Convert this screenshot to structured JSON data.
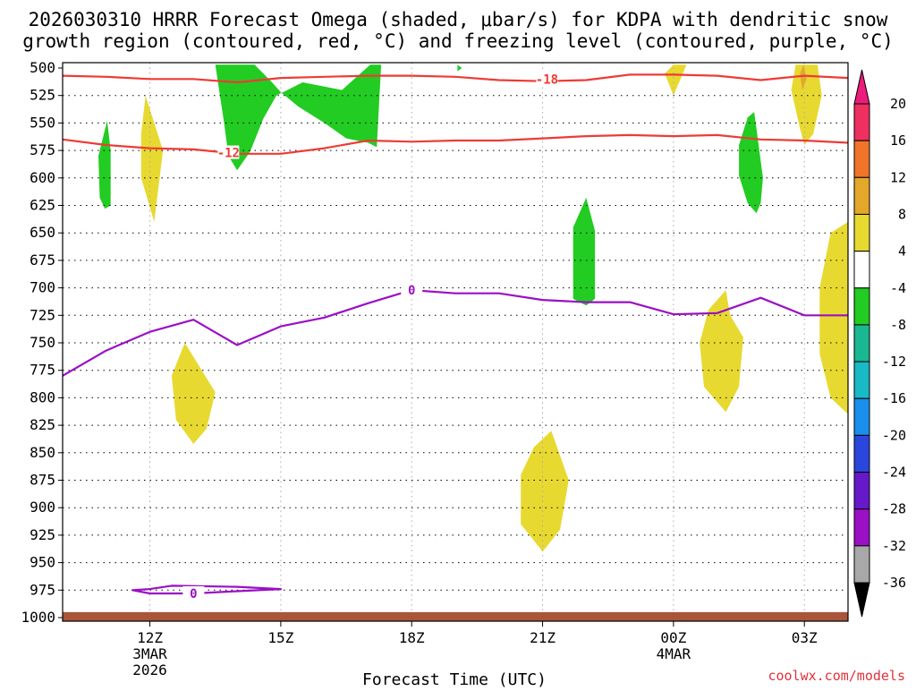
{
  "chart_data": {
    "type": "time-height contour",
    "title_line1": "2026030310 HRRR Forecast Omega (shaded, μbar/s) for KDPA with dendritic snow",
    "title_line2": "growth region (contoured, red, °C) and freezing level (contoured, purple, °C)",
    "xlabel": "Forecast Time (UTC)",
    "credit": "coolwx.com/models",
    "x_range_hours": [
      10,
      28
    ],
    "y_range_hPa": [
      500,
      1000
    ],
    "y_ticks": [
      500,
      525,
      550,
      575,
      600,
      625,
      650,
      675,
      700,
      725,
      750,
      775,
      800,
      825,
      850,
      875,
      900,
      925,
      950,
      975,
      1000
    ],
    "x_ticks": [
      {
        "hour": 12,
        "label": "12Z",
        "sub1": "3MAR",
        "sub2": "2026"
      },
      {
        "hour": 15,
        "label": "15Z",
        "sub1": "",
        "sub2": ""
      },
      {
        "hour": 18,
        "label": "18Z",
        "sub1": "",
        "sub2": ""
      },
      {
        "hour": 21,
        "label": "21Z",
        "sub1": "",
        "sub2": ""
      },
      {
        "hour": 24,
        "label": "00Z",
        "sub1": "4MAR",
        "sub2": ""
      },
      {
        "hour": 27,
        "label": "03Z",
        "sub1": "",
        "sub2": ""
      }
    ],
    "colorbar": {
      "levels": [
        20,
        16,
        12,
        8,
        4,
        -4,
        -8,
        -12,
        -16,
        -20,
        -24,
        -28,
        -32,
        -36
      ],
      "colors": [
        "#ee2f60",
        "#f0752a",
        "#e3a82a",
        "#e8d931",
        "#ffffff",
        "#22cc22",
        "#1ab892",
        "#19b9c6",
        "#1a8fec",
        "#2b46dc",
        "#6619c8",
        "#9a10c4",
        "#a8a8a8"
      ],
      "top_color": "#ec1c7c",
      "bottom_color": "#000000"
    },
    "series": [
      {
        "name": "dgz_-12C",
        "color": "#ee3b35",
        "label": "-12",
        "label_at": [
          13.8,
          577
        ],
        "points": [
          [
            10,
            565
          ],
          [
            11,
            570
          ],
          [
            12,
            573
          ],
          [
            13,
            574
          ],
          [
            14,
            578
          ],
          [
            15,
            578
          ],
          [
            16,
            573
          ],
          [
            17,
            566
          ],
          [
            18,
            567
          ],
          [
            19,
            566
          ],
          [
            20,
            566
          ],
          [
            21,
            564
          ],
          [
            22,
            562
          ],
          [
            23,
            561
          ],
          [
            24,
            562
          ],
          [
            25,
            561
          ],
          [
            26,
            565
          ],
          [
            27,
            566
          ],
          [
            28,
            568
          ]
        ]
      },
      {
        "name": "dgz_-18C",
        "color": "#ee3b35",
        "label": "-18",
        "label_at": [
          21.1,
          510
        ],
        "points": [
          [
            10,
            507
          ],
          [
            11,
            508
          ],
          [
            12,
            510
          ],
          [
            13,
            510
          ],
          [
            14,
            513
          ],
          [
            15,
            509
          ],
          [
            16,
            508
          ],
          [
            17,
            507
          ],
          [
            18,
            507
          ],
          [
            19,
            508
          ],
          [
            20,
            511
          ],
          [
            21,
            512
          ],
          [
            22,
            511
          ],
          [
            23,
            506
          ],
          [
            24,
            506
          ],
          [
            25,
            507
          ],
          [
            26,
            511
          ],
          [
            27,
            507
          ],
          [
            28,
            509
          ]
        ]
      },
      {
        "name": "freezing_level_0C",
        "color": "#9a10c4",
        "label": "0",
        "label_at": [
          18.0,
          702
        ],
        "points": [
          [
            10,
            780
          ],
          [
            11,
            757
          ],
          [
            12,
            740
          ],
          [
            13,
            729
          ],
          [
            14,
            752
          ],
          [
            15,
            735
          ],
          [
            16,
            727
          ],
          [
            17,
            714
          ],
          [
            18,
            702
          ],
          [
            19,
            705
          ],
          [
            20,
            705
          ],
          [
            21,
            711
          ],
          [
            22,
            713
          ],
          [
            23,
            713
          ],
          [
            24,
            724
          ],
          [
            25,
            723
          ],
          [
            26,
            709
          ],
          [
            27,
            725
          ],
          [
            28,
            725
          ]
        ]
      },
      {
        "name": "freezing_level_0C_surface",
        "color": "#9a10c4",
        "label": "0",
        "label_at": [
          13.0,
          978
        ],
        "closed": true,
        "points": [
          [
            11.6,
            975
          ],
          [
            12.0,
            974
          ],
          [
            12.5,
            971
          ],
          [
            14.0,
            972
          ],
          [
            15.0,
            974
          ],
          [
            14.0,
            976
          ],
          [
            13.0,
            978
          ],
          [
            12.0,
            978
          ],
          [
            11.6,
            975
          ]
        ]
      }
    ],
    "shaded_regions": [
      {
        "value": -6,
        "color": "#22cc22",
        "points": [
          [
            11.02,
            548
          ],
          [
            11.1,
            575
          ],
          [
            11.1,
            625
          ],
          [
            10.97,
            628
          ],
          [
            10.85,
            618
          ],
          [
            10.82,
            580
          ]
        ]
      },
      {
        "value": -6,
        "color": "#22cc22",
        "points": [
          [
            13.5,
            497
          ],
          [
            14.4,
            497
          ],
          [
            14.8,
            513
          ],
          [
            15.0,
            522
          ],
          [
            15.4,
            535
          ],
          [
            16.0,
            550
          ],
          [
            16.5,
            564
          ],
          [
            17.0,
            568
          ],
          [
            17.2,
            572
          ],
          [
            17.3,
            497
          ],
          [
            17.05,
            497
          ],
          [
            16.4,
            520
          ],
          [
            15.5,
            513
          ],
          [
            14.9,
            525
          ],
          [
            14.6,
            546
          ],
          [
            14.3,
            576
          ],
          [
            14.0,
            593
          ],
          [
            13.8,
            580
          ],
          [
            13.7,
            550
          ]
        ]
      },
      {
        "value": -6,
        "color": "#22cc22",
        "points": [
          [
            19.05,
            497
          ],
          [
            19.15,
            500
          ],
          [
            19.05,
            503
          ]
        ]
      },
      {
        "value": -6,
        "color": "#22cc22",
        "points": [
          [
            22.0,
            618
          ],
          [
            22.2,
            648
          ],
          [
            22.2,
            710
          ],
          [
            22.0,
            716
          ],
          [
            21.7,
            710
          ],
          [
            21.7,
            645
          ]
        ]
      },
      {
        "value": -6,
        "color": "#22cc22",
        "points": [
          [
            25.9,
            555
          ],
          [
            26.05,
            600
          ],
          [
            26.0,
            623
          ],
          [
            25.9,
            632
          ],
          [
            25.7,
            623
          ],
          [
            25.5,
            598
          ],
          [
            25.5,
            570
          ],
          [
            25.7,
            545
          ],
          [
            25.85,
            540
          ]
        ]
      },
      {
        "value": 6,
        "color": "#e8d931",
        "points": [
          [
            11.9,
            525
          ],
          [
            12.3,
            575
          ],
          [
            12.1,
            640
          ],
          [
            11.8,
            600
          ],
          [
            11.8,
            560
          ]
        ]
      },
      {
        "value": 6,
        "color": "#e8d931",
        "points": [
          [
            12.8,
            750
          ],
          [
            13.5,
            795
          ],
          [
            13.3,
            828
          ],
          [
            13.0,
            842
          ],
          [
            12.6,
            820
          ],
          [
            12.5,
            780
          ]
        ]
      },
      {
        "value": 6,
        "color": "#e8d931",
        "points": [
          [
            21.2,
            830
          ],
          [
            21.6,
            875
          ],
          [
            21.4,
            920
          ],
          [
            21.0,
            940
          ],
          [
            20.5,
            915
          ],
          [
            20.5,
            870
          ],
          [
            20.8,
            845
          ]
        ]
      },
      {
        "value": 6,
        "color": "#e8d931",
        "points": [
          [
            24.0,
            497
          ],
          [
            24.3,
            497
          ],
          [
            24.0,
            525
          ],
          [
            23.8,
            505
          ]
        ]
      },
      {
        "value": 6,
        "color": "#e8d931",
        "points": [
          [
            25.2,
            702
          ],
          [
            25.3,
            725
          ],
          [
            25.6,
            745
          ],
          [
            25.5,
            790
          ],
          [
            25.2,
            813
          ],
          [
            24.7,
            790
          ],
          [
            24.6,
            750
          ],
          [
            24.8,
            720
          ]
        ]
      },
      {
        "value": 6,
        "color": "#e8d931",
        "points": [
          [
            26.8,
            497
          ],
          [
            27.3,
            497
          ],
          [
            27.4,
            525
          ],
          [
            27.2,
            560
          ],
          [
            27.0,
            570
          ],
          [
            26.9,
            555
          ],
          [
            26.7,
            520
          ]
        ]
      },
      {
        "value": 6,
        "color": "#e8d931",
        "points": [
          [
            28.0,
            640
          ],
          [
            28.0,
            815
          ],
          [
            27.6,
            800
          ],
          [
            27.35,
            760
          ],
          [
            27.35,
            700
          ],
          [
            27.6,
            650
          ]
        ]
      },
      {
        "value": 10,
        "color": "#e3a82a",
        "points": [
          [
            26.98,
            497
          ],
          [
            27.05,
            510
          ],
          [
            26.95,
            520
          ],
          [
            26.9,
            505
          ]
        ]
      }
    ],
    "surface_band": {
      "pressure_top": 995,
      "pressure_bottom": 1000,
      "color": "#a8553a"
    }
  }
}
